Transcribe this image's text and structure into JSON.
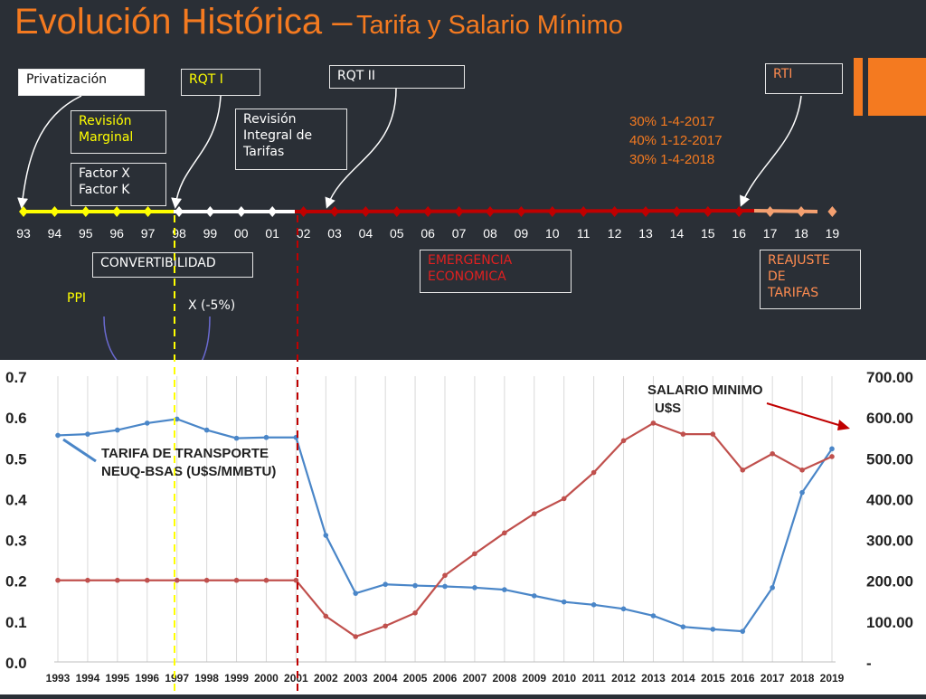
{
  "slide": {
    "title_main": "Evolución Histórica –",
    "title_sub": "Tarifa y Salario Mínimo"
  },
  "timeline": {
    "year_labels": [
      "93",
      "94",
      "95",
      "96",
      "97",
      "98",
      "99",
      "00",
      "01",
      "02",
      "03",
      "04",
      "05",
      "06",
      "07",
      "08",
      "09",
      "10",
      "11",
      "12",
      "13",
      "14",
      "15",
      "16",
      "17",
      "18",
      "19"
    ],
    "boxes": {
      "privatizacion": "Privatización",
      "rqt1": "RQT I",
      "rqt2": "RQT II",
      "rti": "RTI",
      "revision_marginal": "Revisión\nMarginal",
      "factor": "Factor X\nFactor K",
      "revision_integral": "Revisión\nIntegral de\nTarifas",
      "convertibilidad": "CONVERTIBILIDAD",
      "emergencia": "EMERGENCIA\nECONOMICA",
      "reajuste": "REAJUSTE\nDE\nTARIFAS"
    },
    "rti_dates": "30% 1-4-2017\n40% 1-12-2017\n30% 1-4-2018",
    "ppi": "PPI",
    "x_minus": "X (-5%)",
    "colors": {
      "period1": "#ffff00",
      "period2": "#ffffff",
      "period3": "#c00000",
      "period4": "#f4a070",
      "accent": "#f47a20"
    }
  },
  "chart_data": {
    "type": "line",
    "x": [
      1993,
      1994,
      1995,
      1996,
      1997,
      1998,
      1999,
      2000,
      2001,
      2002,
      2003,
      2004,
      2005,
      2006,
      2007,
      2008,
      2009,
      2010,
      2011,
      2012,
      2013,
      2014,
      2015,
      2016,
      2017,
      2018,
      2019
    ],
    "x_tick_labels": [
      "1993",
      "1994",
      "1995",
      "1996",
      "1997",
      "1998",
      "1999",
      "2000",
      "2001",
      "2002",
      "2003",
      "2004",
      "2005",
      "2006",
      "2007",
      "2008",
      "2009",
      "2010",
      "2011",
      "2012",
      "2013",
      "2014",
      "2015",
      "2016",
      "2017",
      "2018",
      "2019"
    ],
    "series": [
      {
        "name": "TARIFA DE TRANSPORTE\nNEUQ-BSAS  (U$S/MMBTU)",
        "axis": "left",
        "color": "#4a86c8",
        "values": [
          0.555,
          0.558,
          0.568,
          0.585,
          0.595,
          0.568,
          0.548,
          0.55,
          0.55,
          0.31,
          0.168,
          0.19,
          0.187,
          0.185,
          0.182,
          0.177,
          0.162,
          0.147,
          0.14,
          0.13,
          0.113,
          0.086,
          0.08,
          0.075,
          0.182,
          0.415,
          0.522
        ]
      },
      {
        "name": "SALARIO MINIMO\nU$S",
        "axis": "right",
        "color": "#c0504d",
        "values": [
          200,
          200,
          200,
          200,
          200,
          200,
          200,
          200,
          200,
          112,
          62,
          88,
          120,
          212,
          265,
          316,
          363,
          400,
          464,
          542,
          585,
          558,
          558,
          470,
          510,
          470,
          503
        ]
      }
    ],
    "y_left": {
      "ylim": [
        0,
        0.7
      ],
      "ticks": [
        "0.0",
        "0.1",
        "0.2",
        "0.3",
        "0.4",
        "0.5",
        "0.6",
        "0.7"
      ]
    },
    "y_right": {
      "ylim": [
        0,
        700
      ],
      "ticks": [
        "-",
        "100.00",
        "200.00",
        "300.00",
        "400.00",
        "500.00",
        "600.00",
        "700.00"
      ]
    },
    "grid": "vertical"
  }
}
